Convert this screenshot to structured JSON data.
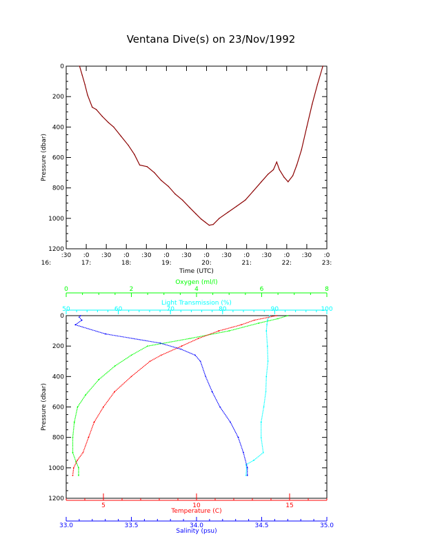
{
  "title": "Ventana Dive(s) on 23/Nov/1992",
  "colors": {
    "axis": "#000000",
    "depth": "#8b0000",
    "temperature": "#ff0000",
    "salinity": "#0000ff",
    "oxygen": "#00ff00",
    "transmission": "#00ffff"
  },
  "chart_data": [
    {
      "type": "line",
      "ylabel": "Pressure (dbar)",
      "xlabel": "Time (UTC)",
      "ylim": [
        1200,
        0
      ],
      "yticks": [
        "0",
        "200",
        "400",
        "600",
        "800",
        "1000",
        "1200"
      ],
      "xticks_top": [
        ":30",
        ":0",
        ":30",
        ":0",
        ":30",
        ":0",
        ":30",
        ":0",
        ":30",
        ":0",
        ":30",
        ":0",
        ":30",
        ":0"
      ],
      "xticks_bottom": [
        "16:",
        "17:",
        "18:",
        "19:",
        "20:",
        "21:",
        "22:",
        "23:"
      ],
      "xlim_hours": [
        16.5,
        23.0
      ],
      "series": [
        {
          "x": [
            "16:50",
            "16:54",
            "16:58",
            "17:02",
            "17:09",
            "17:15",
            "17:24",
            "17:33",
            "17:41",
            "17:52",
            "18:03",
            "18:12",
            "18:20",
            "18:31",
            "18:42",
            "18:52",
            "19:03",
            "19:13",
            "19:24",
            "19:35",
            "19:44",
            "19:52",
            "19:58",
            "20:04",
            "20:10",
            "20:19",
            "20:32",
            "20:45",
            "20:58",
            "21:10",
            "21:22",
            "21:32",
            "21:40",
            "21:45",
            "21:49",
            "21:56",
            "22:02",
            "22:09",
            "22:15",
            "22:22",
            "22:30",
            "22:38",
            "22:46",
            "22:54"
          ],
          "values": [
            0,
            60,
            120,
            190,
            270,
            285,
            330,
            370,
            400,
            460,
            520,
            580,
            650,
            660,
            700,
            750,
            790,
            840,
            880,
            930,
            970,
            1005,
            1025,
            1045,
            1040,
            1000,
            960,
            920,
            880,
            820,
            760,
            710,
            680,
            630,
            680,
            730,
            760,
            720,
            650,
            550,
            400,
            250,
            120,
            0
          ]
        }
      ]
    },
    {
      "type": "scatter",
      "ylabel": "Pressure (dbar)",
      "ylim": [
        1200,
        0
      ],
      "yticks": [
        "0",
        "200",
        "400",
        "600",
        "800",
        "1000",
        "1200"
      ],
      "axes": [
        {
          "label": "Oxygen (ml/l)",
          "range": [
            0,
            8
          ],
          "ticks": [
            "0",
            "2",
            "4",
            "6",
            "8"
          ],
          "position": "top-outer"
        },
        {
          "label": "Light Transmission (%)",
          "range": [
            50,
            100
          ],
          "ticks": [
            "50",
            "60",
            "70",
            "80",
            "90",
            "100"
          ],
          "position": "top-inner"
        },
        {
          "label": "Temperature (C)",
          "range": [
            3,
            17
          ],
          "ticks": [
            "5",
            "10",
            "15"
          ],
          "position": "bottom-inner"
        },
        {
          "label": "Salinity (psu)",
          "range": [
            33.0,
            35.0
          ],
          "ticks": [
            "33.0",
            "33.5",
            "34.0",
            "34.5",
            "35.0"
          ],
          "position": "bottom-outer"
        }
      ],
      "series": [
        {
          "axis": 0,
          "pressure": [
            0,
            20,
            50,
            100,
            150,
            200,
            260,
            330,
            420,
            520,
            600,
            700,
            800,
            900,
            960,
            1000,
            1050
          ],
          "values": [
            6.8,
            6.5,
            5.9,
            5.0,
            3.8,
            2.5,
            2.0,
            1.5,
            1.0,
            0.6,
            0.35,
            0.25,
            0.2,
            0.2,
            0.3,
            0.38,
            0.38
          ]
        },
        {
          "axis": 1,
          "pressure": [
            0,
            30,
            60,
            100,
            200,
            300,
            400,
            500,
            600,
            700,
            800,
            900,
            950,
            980,
            1000,
            1050
          ],
          "values": [
            89,
            88.6,
            88.5,
            88.4,
            88.6,
            88.7,
            88.4,
            88.3,
            87.9,
            87.4,
            87.4,
            87.8,
            86,
            84.5,
            84.6,
            84.5
          ]
        },
        {
          "axis": 2,
          "pressure": [
            0,
            30,
            60,
            100,
            150,
            200,
            260,
            300,
            400,
            500,
            600,
            700,
            800,
            900,
            950,
            1000,
            1050
          ],
          "values": [
            14.3,
            13.1,
            12.4,
            11.2,
            10.1,
            9.2,
            8.1,
            7.5,
            6.5,
            5.6,
            5.0,
            4.5,
            4.2,
            3.9,
            3.6,
            3.4,
            3.35
          ]
        },
        {
          "axis": 3,
          "pressure": [
            0,
            10,
            30,
            60,
            120,
            180,
            220,
            260,
            300,
            400,
            500,
            600,
            700,
            800,
            900,
            1000,
            1050
          ],
          "values": [
            33.11,
            33.1,
            33.12,
            33.07,
            33.3,
            33.72,
            33.88,
            33.99,
            34.03,
            34.07,
            34.12,
            34.18,
            34.26,
            34.32,
            34.36,
            34.39,
            34.39
          ]
        }
      ]
    }
  ]
}
